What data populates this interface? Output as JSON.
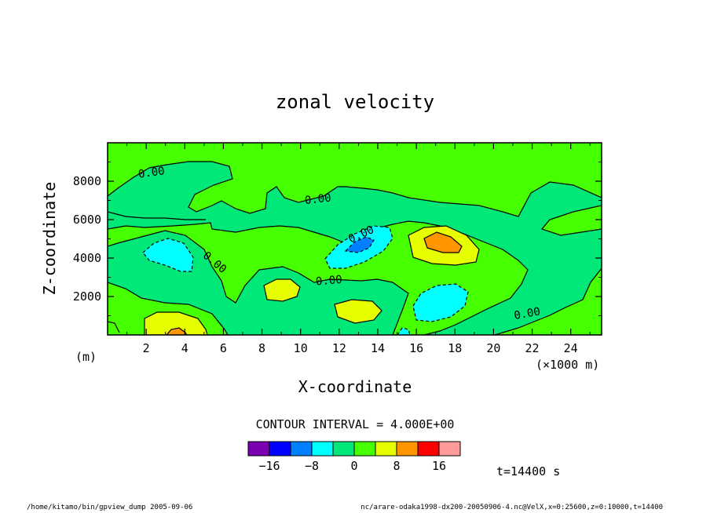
{
  "chart_data": {
    "type": "contour",
    "title": "zonal velocity",
    "xlabel": "X-coordinate",
    "ylabel": "Z-coordinate",
    "x_unit": "(×1000 m)",
    "y_unit": "(m)",
    "xlim": [
      0,
      25.6
    ],
    "ylim": [
      0,
      10000
    ],
    "x_ticks": [
      "2",
      "4",
      "6",
      "8",
      "10",
      "12",
      "14",
      "16",
      "18",
      "20",
      "22",
      "24"
    ],
    "y_ticks": [
      "2000",
      "4000",
      "6000",
      "8000"
    ],
    "contour_label": "0.00",
    "contour_interval_text": "CONTOUR INTERVAL = 4.000E+00",
    "colorbar": {
      "levels": [
        -20,
        -16,
        -12,
        -8,
        -4,
        0,
        4,
        8,
        12,
        16,
        20
      ],
      "labels": [
        "−16",
        "−8",
        "0",
        "8",
        "16"
      ],
      "colors": [
        "#7b00b4",
        "#0000ff",
        "#0080ff",
        "#00ffff",
        "#00e878",
        "#46ff00",
        "#e6ff00",
        "#ff9600",
        "#ff0000",
        "#ff9a9a"
      ]
    },
    "time_label": "t=14400 s",
    "footer_left": "/home/kitamo/bin/gpview_dump  2005-09-06",
    "footer_right": "nc/arare-odaka1998-dx200-20050906-4.nc@VelX,x=0:25600,z=0:10000,t=14400"
  }
}
